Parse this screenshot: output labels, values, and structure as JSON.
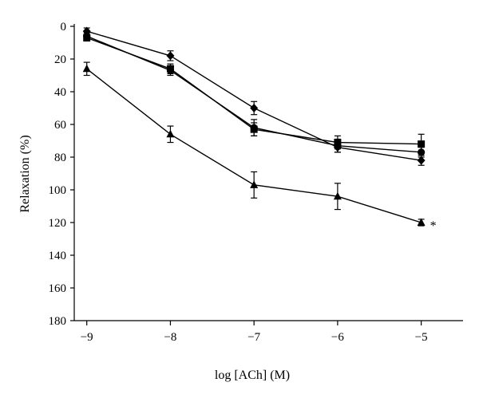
{
  "chart_data": {
    "type": "line",
    "xlabel": "log [ACh] (M)",
    "ylabel": "Relaxation (%)",
    "x": [
      -9,
      -8,
      -7,
      -6,
      -5
    ],
    "xlim": [
      -9.15,
      -4.5
    ],
    "ylim": [
      0,
      180
    ],
    "y_inverted": true,
    "xticks": [
      -9,
      -8,
      -7,
      -6,
      -5
    ],
    "yticks": [
      0,
      20,
      40,
      60,
      80,
      100,
      120,
      140,
      160,
      180
    ],
    "grid": false,
    "series": [
      {
        "marker": "diamond",
        "values": [
          3,
          18,
          50,
          74,
          82
        ],
        "errors": [
          2,
          3,
          4,
          3,
          3
        ]
      },
      {
        "marker": "square",
        "values": [
          7,
          26,
          63,
          71,
          72
        ],
        "errors": [
          2,
          3,
          4,
          4,
          6
        ]
      },
      {
        "marker": "circle",
        "values": [
          6,
          27,
          62,
          73,
          77
        ],
        "errors": [
          2,
          3,
          5,
          4,
          3
        ]
      },
      {
        "marker": "triangle",
        "values": [
          26,
          66,
          97,
          104,
          120
        ],
        "errors": [
          4,
          5,
          8,
          8,
          2
        ]
      }
    ],
    "annotations": [
      {
        "text": "*",
        "x": -5,
        "y": 120
      }
    ]
  }
}
